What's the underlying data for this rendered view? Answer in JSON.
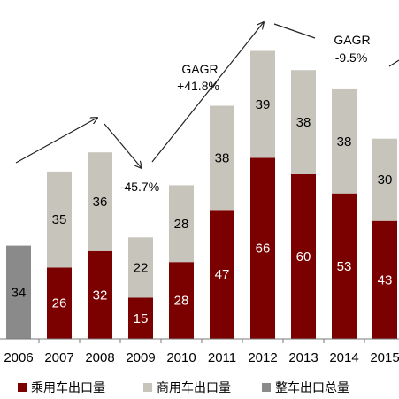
{
  "chart_data": {
    "type": "bar",
    "stacked": true,
    "categories": [
      "2006",
      "2007",
      "2008",
      "2009",
      "2010",
      "2011",
      "2012",
      "2013",
      "2014",
      "2015"
    ],
    "series": [
      {
        "name": "乘用车出口量",
        "color": "#7b0000",
        "label_color": "#ffffff",
        "values": [
          null,
          26,
          32,
          15,
          28,
          47,
          66,
          60,
          53,
          43
        ]
      },
      {
        "name": "商用车出口量",
        "color": "#c7c5bb",
        "label_color": "#000000",
        "values": [
          null,
          35,
          36,
          22,
          28,
          38,
          39,
          38,
          38,
          30
        ]
      },
      {
        "name": "整车出口总量",
        "color": "#8a8a8a",
        "label_color": "#000000",
        "values": [
          34,
          null,
          null,
          null,
          null,
          null,
          null,
          null,
          null,
          null
        ]
      }
    ],
    "annotations": [
      {
        "text": "-45.7%",
        "at": "2009"
      },
      {
        "text": "GAGR",
        "at": "2010-2011"
      },
      {
        "text": "+41.8%",
        "at": "2010-2011"
      },
      {
        "text": "GAGR",
        "at": "2013-2014"
      },
      {
        "text": "-9.5%",
        "at": "2013-2014"
      }
    ],
    "legend": {
      "position": "bottom"
    },
    "grid": false
  }
}
